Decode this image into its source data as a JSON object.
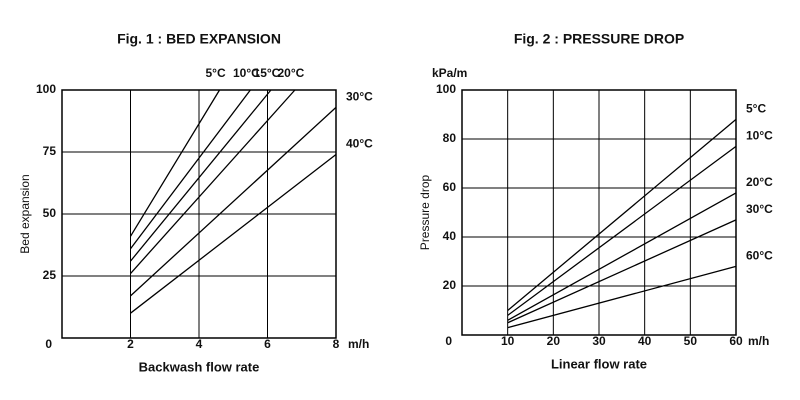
{
  "chart_data": [
    {
      "type": "line",
      "title": "Fig. 1 : BED EXPANSION",
      "x_label": "Backwash flow rate",
      "y_label": "Bed expansion",
      "x_unit": "m/h",
      "xlim": [
        0,
        8
      ],
      "ylim": [
        0,
        100
      ],
      "xticks": [
        0,
        2,
        4,
        6,
        8
      ],
      "yticks": [
        25,
        50,
        75,
        100
      ],
      "grid": true,
      "series": [
        {
          "name": "5°C",
          "color": "#000000",
          "x": [
            2,
            4.6
          ],
          "values": [
            41,
            100
          ]
        },
        {
          "name": "10°C",
          "color": "#000000",
          "x": [
            2,
            5.5
          ],
          "values": [
            36,
            100
          ]
        },
        {
          "name": "15°C",
          "color": "#000000",
          "x": [
            2,
            6.1
          ],
          "values": [
            31,
            100
          ]
        },
        {
          "name": "20°C",
          "color": "#000000",
          "x": [
            2,
            6.8
          ],
          "values": [
            26,
            100
          ]
        },
        {
          "name": "30°C",
          "color": "#000000",
          "x": [
            2,
            8
          ],
          "values": [
            17,
            93
          ]
        },
        {
          "name": "40°C",
          "color": "#000000",
          "x": [
            2,
            8
          ],
          "values": [
            10,
            74
          ]
        }
      ]
    },
    {
      "type": "line",
      "title": "Fig. 2 : PRESSURE DROP",
      "x_label": "Linear flow rate",
      "y_label": "Pressure drop",
      "x_unit": "m/h",
      "y_unit": "kPa/m",
      "xlim": [
        0,
        60
      ],
      "ylim": [
        0,
        100
      ],
      "xticks": [
        0,
        10,
        20,
        30,
        40,
        50,
        60
      ],
      "yticks": [
        20,
        40,
        60,
        80,
        100
      ],
      "grid": true,
      "series": [
        {
          "name": "5°C",
          "color": "#000000",
          "x": [
            10,
            60
          ],
          "values": [
            10,
            88
          ]
        },
        {
          "name": "10°C",
          "color": "#000000",
          "x": [
            10,
            60
          ],
          "values": [
            8,
            77
          ]
        },
        {
          "name": "20°C",
          "color": "#000000",
          "x": [
            10,
            60
          ],
          "values": [
            6,
            58
          ]
        },
        {
          "name": "30°C",
          "color": "#000000",
          "x": [
            10,
            60
          ],
          "values": [
            5,
            47
          ]
        },
        {
          "name": "60°C",
          "color": "#000000",
          "x": [
            10,
            60
          ],
          "values": [
            3,
            28
          ]
        }
      ]
    }
  ]
}
